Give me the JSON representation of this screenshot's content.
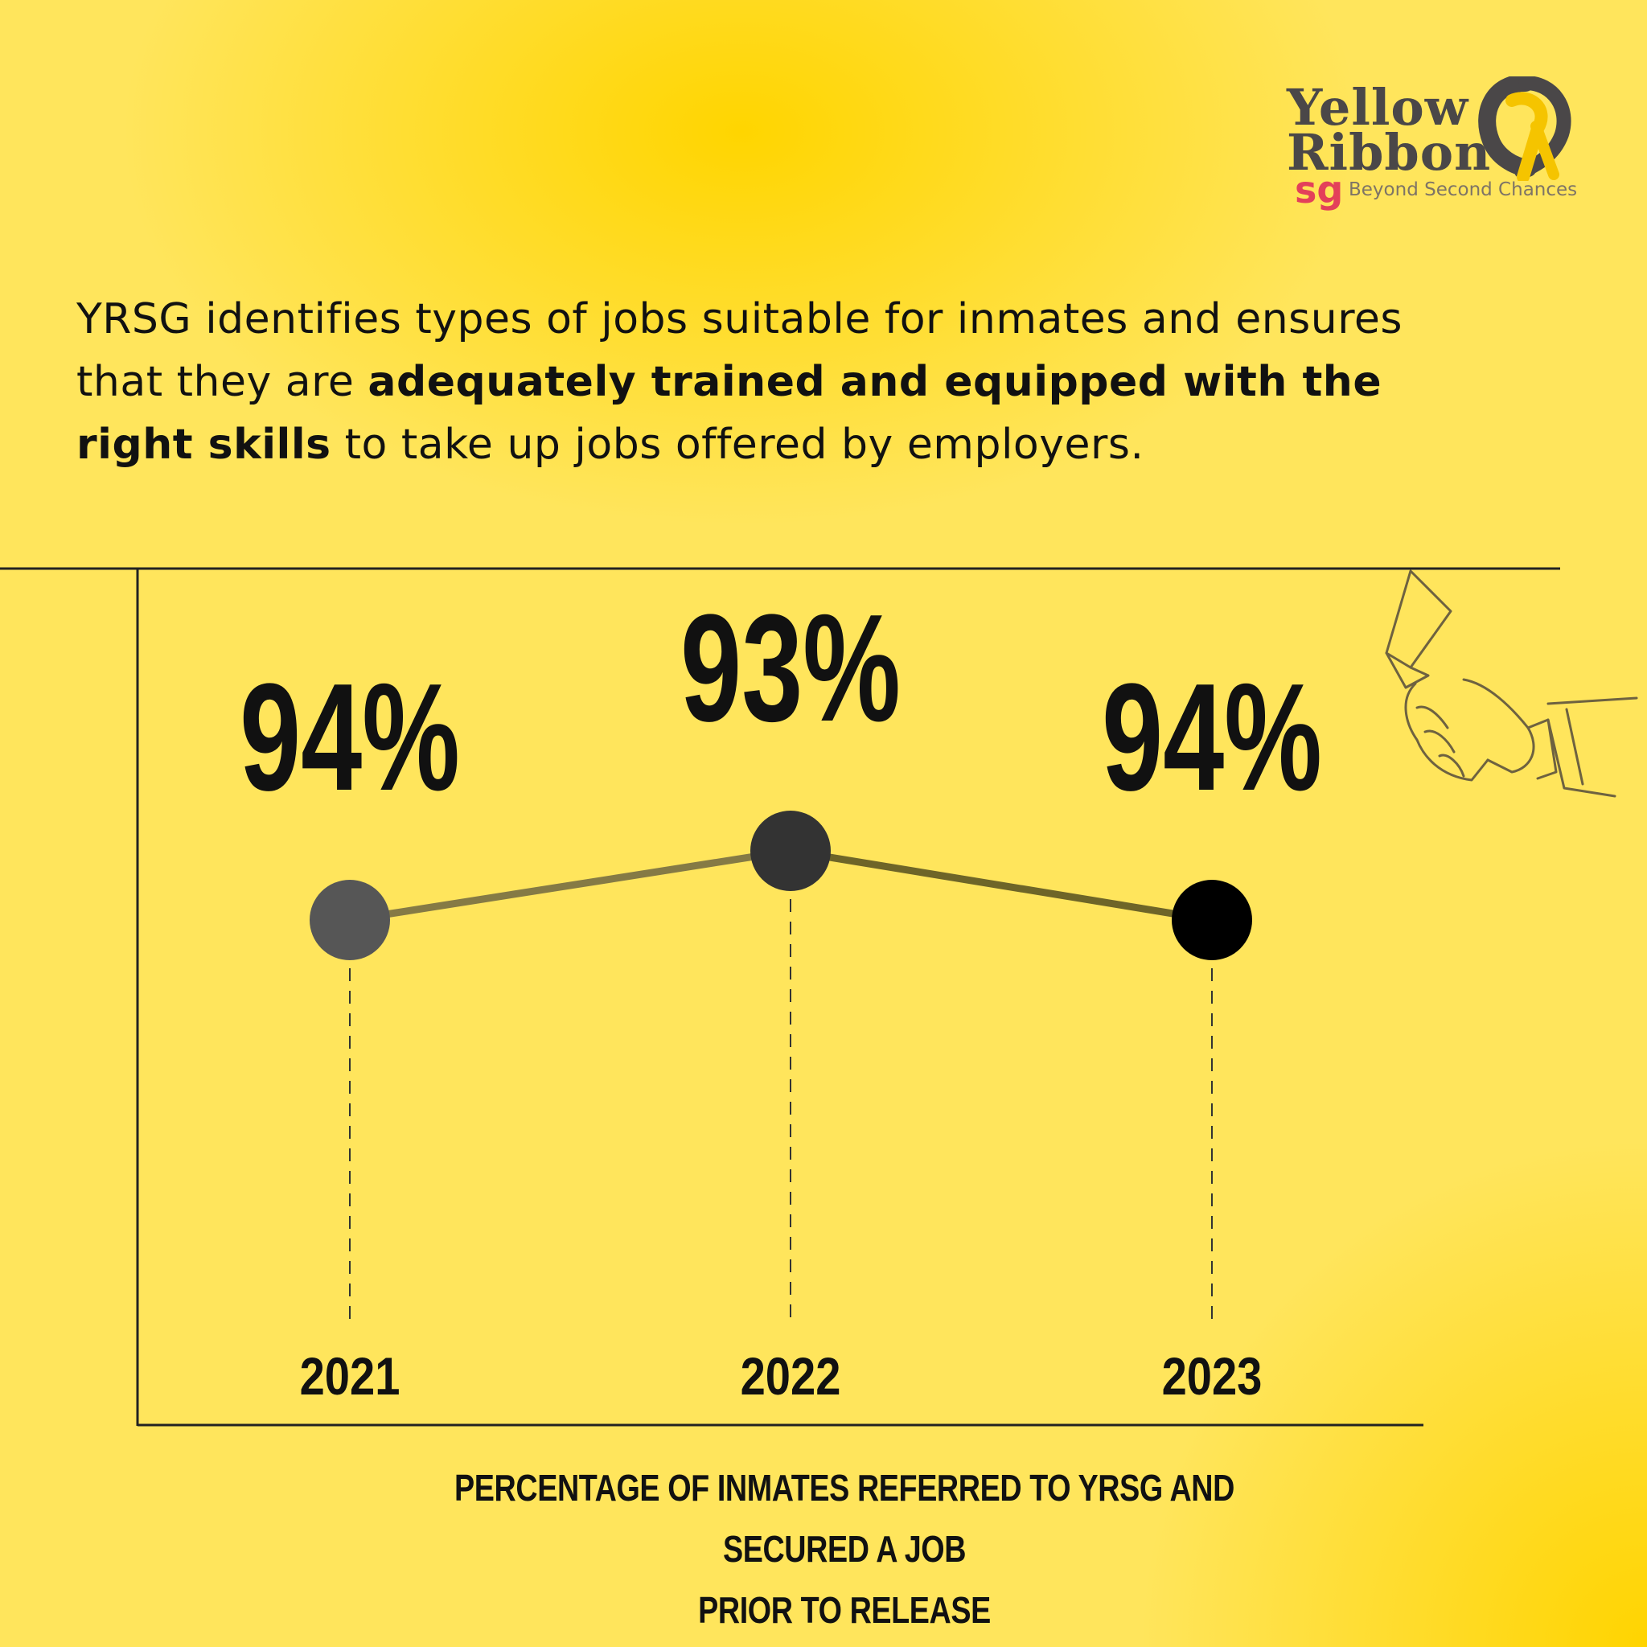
{
  "logo": {
    "line1": "Yellow",
    "line2": "Ribbon",
    "sg": "sg",
    "tagline": "Beyond Second Chances",
    "colors": {
      "wordmark": "#4a4748",
      "ribbon": "#f5c400",
      "sg": "#e3405a"
    }
  },
  "intro": {
    "part1": "YRSG identifies types of jobs suitable for inmates and ensures that they are ",
    "bold": "adequately trained and equipped with the right skills",
    "part2": " to take up jobs offered by employers."
  },
  "illustration": {
    "icon": "handshake-icon"
  },
  "chart_data": {
    "type": "line",
    "categories": [
      "2021",
      "2022",
      "2023"
    ],
    "values": [
      94,
      93,
      94
    ],
    "value_labels": [
      "94%",
      "93%",
      "94%"
    ],
    "caption_line1": "PERCENTAGE OF INMATES REFERRED TO YRSG AND SECURED A JOB",
    "caption_line2": "PRIOR TO RELEASE",
    "grid": false,
    "point_colors": [
      "#565656",
      "#333333",
      "#000000"
    ]
  }
}
